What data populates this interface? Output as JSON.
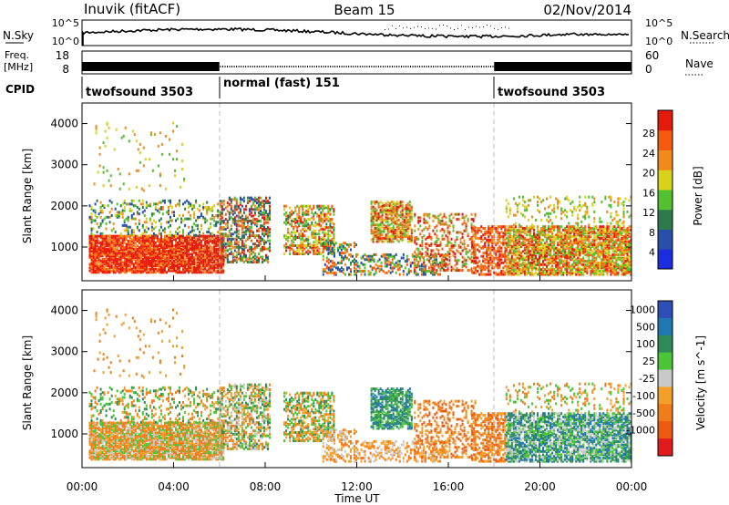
{
  "header": {
    "station": "Inuvik (fitACF)",
    "beam": "Beam 15",
    "date": "02/Nov/2014"
  },
  "summary_panels": {
    "nsky_label": "N.Sky",
    "nsky_ticks": [
      "10^5",
      "10^0"
    ],
    "nsearch_label": "N.Search",
    "nsearch_ticks": [
      "10^5",
      "10^0"
    ],
    "freq_label_1": "Freq.",
    "freq_label_2": "[MHz]",
    "freq_ticks": [
      "18",
      "8"
    ],
    "nave_label": "Nave",
    "nave_ticks": [
      "60",
      "0"
    ],
    "cpid_label": "CPID",
    "cpid_segments": [
      {
        "name": "twofsound 3503",
        "start_h": 0,
        "end_h": 6
      },
      {
        "name": "normal (fast) 151",
        "start_h": 6,
        "end_h": 18
      },
      {
        "name": "twofsound 3503",
        "start_h": 18,
        "end_h": 24
      }
    ]
  },
  "colors": {
    "power": [
      "#1b2dde",
      "#2850aa",
      "#2f7a4a",
      "#52c02f",
      "#d8d21a",
      "#f08a1c",
      "#f55a0f",
      "#e41a0c"
    ],
    "velocity": [
      "#2e4fb8",
      "#1f77b4",
      "#2e8b57",
      "#49c535",
      "#c8c8c8",
      "#f2a02a",
      "#f07d19",
      "#ec5a10",
      "#e31a1c"
    ]
  },
  "chart_data": [
    {
      "type": "heatmap",
      "ylabel": "Slant Range [km]",
      "ylim": [
        180,
        4500
      ],
      "yticks": [
        1000,
        2000,
        3000,
        4000
      ],
      "xlim": [
        0,
        24
      ],
      "colorbar_label": "Power [dB]",
      "colorbar_ticks": [
        "4",
        "8",
        "12",
        "16",
        "20",
        "24",
        "28"
      ]
    },
    {
      "type": "heatmap",
      "xlabel": "Time UT",
      "ylabel": "Slant Range [km]",
      "ylim": [
        180,
        4500
      ],
      "yticks": [
        1000,
        2000,
        3000,
        4000
      ],
      "xlim": [
        0,
        24
      ],
      "xticks": [
        "00:00",
        "04:00",
        "08:00",
        "12:00",
        "16:00",
        "20:00",
        "00:00"
      ],
      "colorbar_label": "Velocity [m s^-1]",
      "colorbar_ticks": [
        "1000",
        "500",
        "100",
        "25",
        "-25",
        "-100",
        "-500",
        "-1000"
      ]
    }
  ]
}
